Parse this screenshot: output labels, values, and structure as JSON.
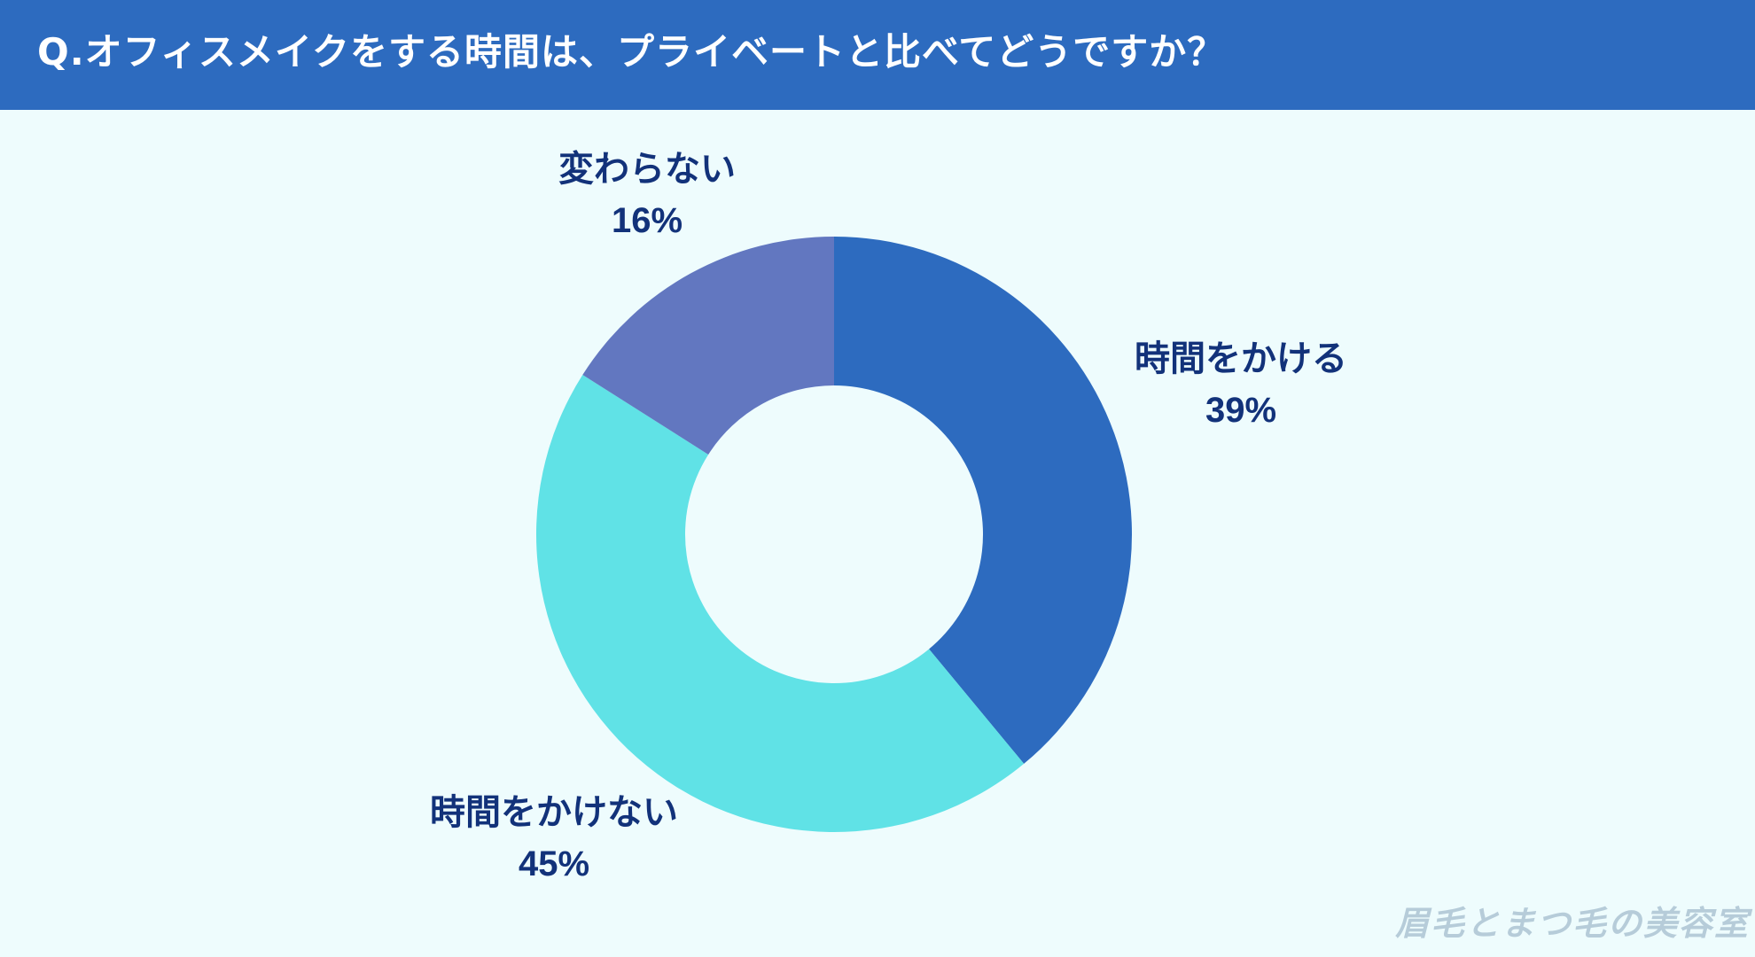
{
  "header": {
    "title": "Q.オフィスメイクをする時間は、プライベートと比べてどうですか？"
  },
  "chart_data": {
    "type": "pie",
    "title": "Q.オフィスメイクをする時間は、プライベートと比べてどうですか？",
    "donut": true,
    "categories": [
      "時間をかける",
      "時間をかけない",
      "変わらない"
    ],
    "values": [
      39,
      45,
      16
    ],
    "value_labels": [
      "39%",
      "45%",
      "16%"
    ],
    "colors": [
      "#2d6bbf",
      "#60e2e6",
      "#6277c0"
    ],
    "start": "12 o'clock",
    "direction": "clockwise"
  },
  "colors": {
    "header_bg": "#2d6bbf",
    "page_bg": "#eefcfd",
    "label_text": "#12327a"
  },
  "watermark": {
    "text": "眉毛とまつ毛の美容室"
  }
}
